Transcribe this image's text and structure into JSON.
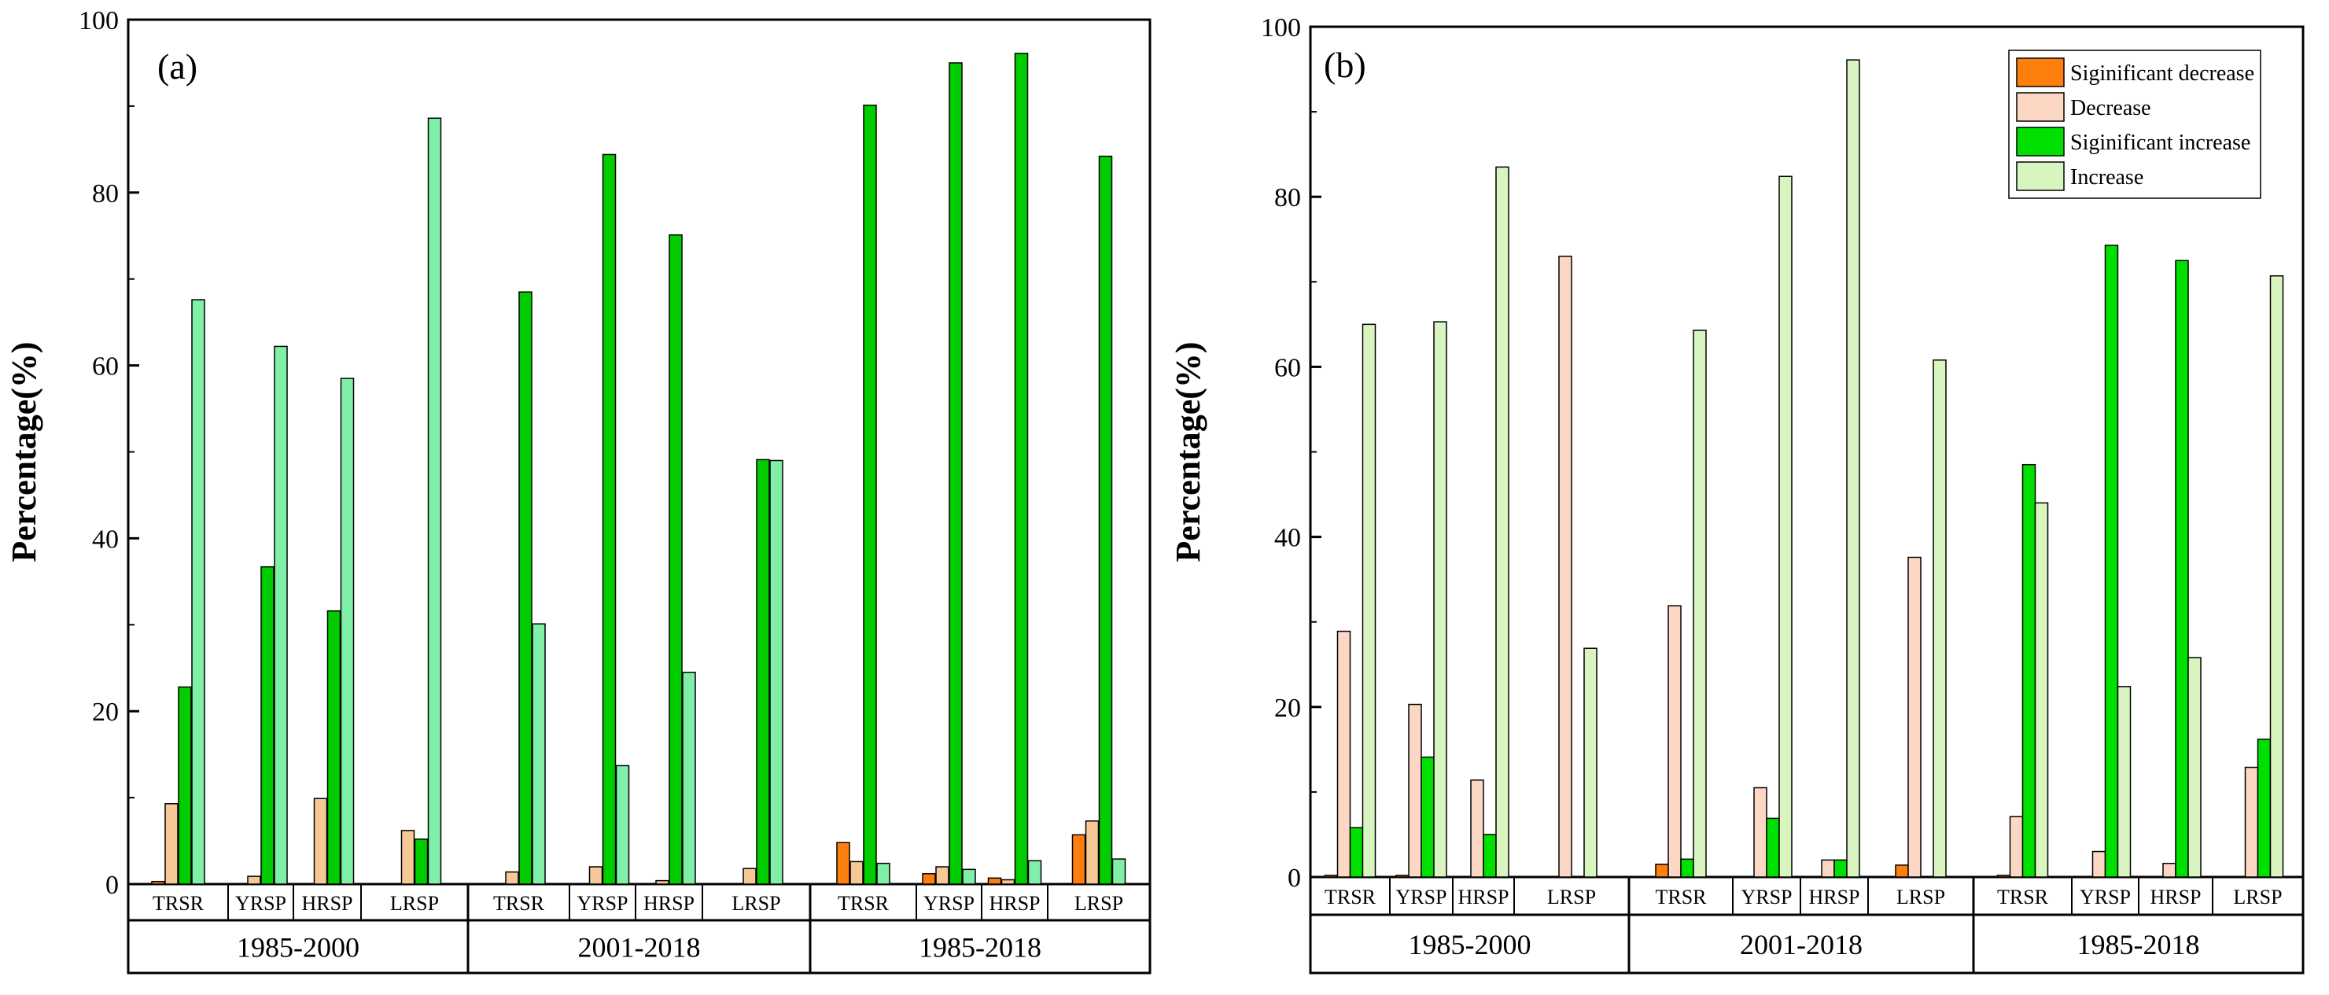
{
  "chart_data": [
    {
      "panel_label": "(a)",
      "type": "bar",
      "ylabel": "Percentage(%)",
      "xlabel": "",
      "ylim": [
        0,
        100
      ],
      "yticks": [
        0,
        20,
        40,
        60,
        80,
        100
      ],
      "periods": [
        "1985-2000",
        "2001-2018",
        "1985-2018"
      ],
      "stations": [
        "TRSR",
        "YRSP",
        "HRSP",
        "LRSP"
      ],
      "series": [
        {
          "name": "Sigificant decrease",
          "color": "#ff7f0e",
          "values": [
            [
              0.3,
              0,
              0,
              0
            ],
            [
              0,
              0,
              0,
              0
            ],
            [
              4.8,
              1.2,
              0.7,
              5.7
            ]
          ]
        },
        {
          "name": "Decrease",
          "color": "#f5c896",
          "values": [
            [
              9.3,
              0.9,
              9.9,
              6.2
            ],
            [
              1.4,
              2.0,
              0.4,
              1.8
            ],
            [
              2.6,
              2.0,
              0.5,
              7.3
            ]
          ]
        },
        {
          "name": "Sigificant increase",
          "color": "#00cc00",
          "values": [
            [
              22.8,
              36.7,
              31.6,
              5.2
            ],
            [
              68.5,
              84.4,
              75.1,
              49.1
            ],
            [
              90.1,
              95.0,
              96.1,
              84.2
            ]
          ]
        },
        {
          "name": "Increase",
          "color": "#80f0a8",
          "values": [
            [
              67.6,
              62.2,
              58.5,
              88.6
            ],
            [
              30.1,
              13.7,
              24.5,
              49.0
            ],
            [
              2.4,
              1.7,
              2.7,
              2.9
            ]
          ]
        }
      ]
    },
    {
      "panel_label": "(b)",
      "type": "bar",
      "ylabel": "Percentage(%)",
      "xlabel": "",
      "ylim": [
        0,
        100
      ],
      "yticks": [
        0,
        20,
        40,
        60,
        80,
        100
      ],
      "periods": [
        "1985-2000",
        "2001-2018",
        "1985-2018"
      ],
      "stations": [
        "TRSR",
        "YRSP",
        "HRSP",
        "LRSP"
      ],
      "legend_position": "top-right",
      "series": [
        {
          "name": "Siginificant decrease",
          "color": "#ff7f0e",
          "values": [
            [
              0.2,
              0.2,
              0,
              0
            ],
            [
              1.5,
              0,
              0,
              1.4
            ],
            [
              0.2,
              0,
              0,
              0
            ]
          ]
        },
        {
          "name": "Decrease",
          "color": "#fcd8c4",
          "values": [
            [
              28.9,
              20.3,
              11.4,
              73.0
            ],
            [
              31.9,
              10.5,
              2.0,
              37.6
            ],
            [
              7.1,
              3.0,
              1.6,
              12.9
            ]
          ]
        },
        {
          "name": "Siginificant increase",
          "color": "#00e000",
          "values": [
            [
              5.8,
              14.1,
              5.0,
              0
            ],
            [
              2.1,
              6.9,
              2.0,
              0
            ],
            [
              48.5,
              74.3,
              72.5,
              16.2
            ]
          ]
        },
        {
          "name": "Increase",
          "color": "#d8f5c0",
          "values": [
            [
              65.0,
              65.3,
              83.5,
              26.9
            ],
            [
              64.3,
              82.4,
              96.1,
              60.8
            ],
            [
              44.0,
              22.4,
              25.8,
              70.7
            ]
          ]
        }
      ]
    }
  ]
}
